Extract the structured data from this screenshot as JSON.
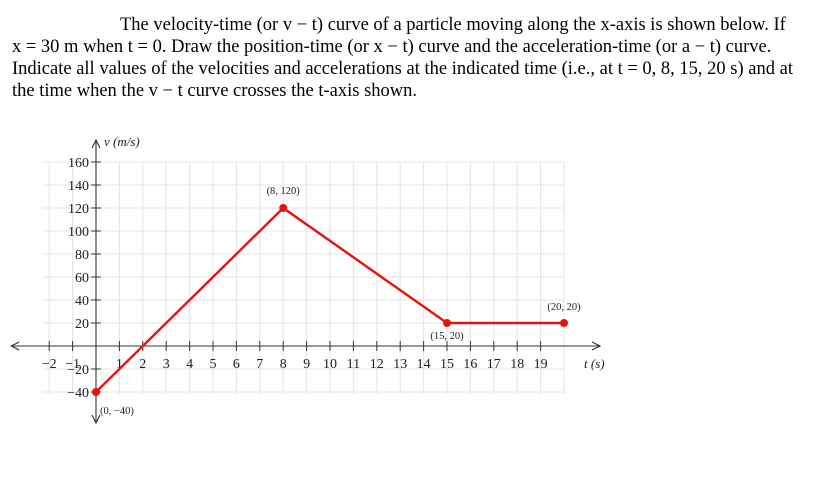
{
  "problem": {
    "line1": "The velocity-time (or v − t) curve of a particle moving along the x-axis is shown below. If",
    "line2": "x = 30 m when t = 0. Draw the position-time (or x − t) curve and the acceleration-time (or a − t) curve.",
    "line3": "Indicate all values of the velocities and accelerations at the indicated time (i.e., at t = 0, 8, 15, 20 s) and at",
    "line4": "the time when the v − t curve crosses the t-axis shown."
  },
  "chart_data": {
    "type": "line",
    "xlabel": "t (s)",
    "ylabel": "v (m/s)",
    "xlim": [
      -2,
      20
    ],
    "ylim": [
      -40,
      160
    ],
    "grid": true,
    "x_ticks": [
      -2,
      -1,
      1,
      2,
      3,
      4,
      5,
      6,
      7,
      8,
      9,
      10,
      11,
      12,
      13,
      14,
      15,
      16,
      17,
      18,
      19
    ],
    "y_ticks": [
      160,
      140,
      120,
      100,
      80,
      60,
      40,
      20,
      -20,
      -40
    ],
    "series": [
      {
        "color": "#e8120c",
        "points": [
          {
            "x": 0,
            "y": -40,
            "label": "(0, −40)"
          },
          {
            "x": 8,
            "y": 120,
            "label": "(8, 120)"
          },
          {
            "x": 15,
            "y": 20,
            "label": "(15, 20)"
          },
          {
            "x": 20,
            "y": 20,
            "label": "(20, 20)"
          }
        ]
      }
    ]
  }
}
